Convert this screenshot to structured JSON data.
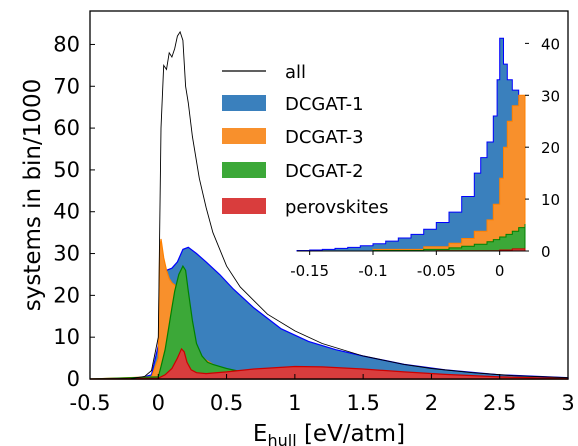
{
  "chart_data": {
    "type": "area",
    "xlabel_main": "E",
    "xlabel_sub": "hull",
    "xlabel_rest": " [eV/atm]",
    "ylabel": "systems in bin/1000",
    "xlim": [
      -0.5,
      3
    ],
    "ylim": [
      0,
      88
    ],
    "xticks": [
      -0.5,
      0,
      0.5,
      1,
      1.5,
      2,
      2.5,
      3
    ],
    "xtick_labels": [
      "-0.5",
      "0",
      "0.5",
      "1",
      "1.5",
      "2",
      "2.5",
      "3"
    ],
    "yticks": [
      0,
      10,
      20,
      30,
      40,
      50,
      60,
      70,
      80
    ],
    "ytick_labels": [
      "0",
      "10",
      "20",
      "30",
      "40",
      "50",
      "60",
      "70",
      "80"
    ],
    "legend": {
      "placement": "upper-center",
      "entries": [
        {
          "label": "all",
          "kind": "line",
          "color": "#000000"
        },
        {
          "label": "DCGAT-1",
          "kind": "patch",
          "color": "#3a80bd"
        },
        {
          "label": "DCGAT-3",
          "kind": "patch",
          "color": "#f8902c"
        },
        {
          "label": "DCGAT-2",
          "kind": "patch",
          "color": "#3ca838"
        },
        {
          "label": "perovskites",
          "kind": "patch",
          "color": "#d93d3d"
        }
      ]
    },
    "series": [
      {
        "name": "all",
        "style": "line",
        "color": "#000000",
        "x": [
          -0.5,
          -0.2,
          -0.1,
          -0.05,
          0.0,
          0.02,
          0.04,
          0.06,
          0.08,
          0.1,
          0.12,
          0.14,
          0.16,
          0.18,
          0.2,
          0.22,
          0.25,
          0.3,
          0.35,
          0.4,
          0.5,
          0.6,
          0.8,
          1.0,
          1.2,
          1.5,
          1.8,
          2.0,
          2.3,
          2.6,
          3.0
        ],
        "y": [
          0,
          0.1,
          0.6,
          2,
          10,
          60,
          75,
          74,
          78,
          77,
          79,
          82,
          83,
          81,
          70,
          66,
          58,
          48,
          41,
          35,
          27,
          22,
          15.5,
          11.5,
          8.5,
          5.5,
          3.5,
          2.5,
          1.5,
          0.8,
          0.3
        ]
      },
      {
        "name": "DCGAT-1",
        "style": "area",
        "color": "#3a80bd",
        "edge": "#0000ff",
        "x": [
          -0.5,
          -0.15,
          -0.05,
          0.0,
          0.02,
          0.04,
          0.06,
          0.1,
          0.14,
          0.18,
          0.22,
          0.28,
          0.35,
          0.45,
          0.55,
          0.7,
          0.9,
          1.1,
          1.3,
          1.5,
          1.8,
          2.1,
          2.5,
          3.0
        ],
        "y": [
          0,
          0.1,
          1,
          8,
          25,
          27,
          26,
          26.5,
          28,
          31,
          31.5,
          30,
          28,
          25,
          21.5,
          17,
          12,
          9,
          7,
          5.5,
          3.5,
          2.2,
          1,
          0.3
        ]
      },
      {
        "name": "DCGAT-3",
        "style": "area",
        "color": "#f8902c",
        "edge": "#ff8000",
        "x": [
          -0.5,
          -0.05,
          0.0,
          0.01,
          0.02,
          0.04,
          0.06,
          0.08,
          0.1,
          0.12,
          0.15,
          0.18,
          0.22,
          0.26,
          0.3,
          0.35,
          0.4,
          0.5,
          0.6,
          0.8,
          1.0,
          3.0
        ],
        "y": [
          0,
          0.5,
          5,
          31,
          33.5,
          29,
          26,
          24,
          23,
          22.5,
          21,
          18,
          12,
          8,
          6,
          4.5,
          3.5,
          2.2,
          1.4,
          0.7,
          0.3,
          0
        ]
      },
      {
        "name": "DCGAT-2",
        "style": "area",
        "color": "#3ca838",
        "edge": "#008000",
        "x": [
          -0.5,
          0.0,
          0.02,
          0.05,
          0.08,
          0.1,
          0.12,
          0.15,
          0.18,
          0.2,
          0.22,
          0.25,
          0.28,
          0.32,
          0.36,
          0.4,
          0.5,
          0.6,
          0.8,
          1.0,
          1.5,
          3.0
        ],
        "y": [
          0,
          0.5,
          3,
          7,
          13,
          17,
          21,
          25,
          27,
          26,
          21,
          14,
          8.5,
          5.5,
          4,
          3.5,
          2.5,
          1.8,
          1,
          0.5,
          0.2,
          0
        ]
      },
      {
        "name": "perovskites",
        "style": "area",
        "color": "#d93d3d",
        "edge": "#cc0000",
        "x": [
          -0.5,
          0.0,
          0.05,
          0.1,
          0.14,
          0.17,
          0.19,
          0.21,
          0.24,
          0.28,
          0.35,
          0.5,
          0.7,
          1.0,
          1.2,
          1.5,
          1.8,
          2.1,
          2.5,
          3.0
        ],
        "y": [
          0,
          0.2,
          1,
          2.5,
          5,
          7.2,
          6.5,
          4,
          2.2,
          1.5,
          1.3,
          1.7,
          2.4,
          3,
          2.9,
          2.4,
          1.7,
          1.1,
          0.5,
          0.1
        ]
      }
    ],
    "inset": {
      "xlim": [
        -0.16,
        0.02
      ],
      "ylim": [
        0,
        42
      ],
      "xticks": [
        -0.15,
        -0.1,
        -0.05,
        0
      ],
      "xtick_labels": [
        "-0.15",
        "-0.1",
        "-0.05",
        "0"
      ],
      "yticks": [
        0,
        10,
        20,
        30,
        40
      ],
      "ytick_labels": [
        "0",
        "10",
        "20",
        "30",
        "40"
      ],
      "yaxis_side": "right",
      "series": [
        {
          "name": "DCGAT-1",
          "color": "#3a80bd",
          "edge": "#0000ff",
          "x": [
            -0.16,
            -0.15,
            -0.14,
            -0.13,
            -0.12,
            -0.11,
            -0.1,
            -0.09,
            -0.08,
            -0.07,
            -0.06,
            -0.05,
            -0.04,
            -0.03,
            -0.02,
            -0.015,
            -0.01,
            -0.005,
            -0.002,
            0.0,
            0.003,
            0.006,
            0.01,
            0.015,
            0.02
          ],
          "y": [
            0.1,
            0.2,
            0.3,
            0.5,
            0.7,
            1.0,
            1.4,
            1.9,
            2.5,
            3.2,
            4.2,
            5.5,
            7.5,
            10.5,
            15,
            18,
            21,
            26,
            33,
            41,
            36,
            33,
            31,
            29,
            28
          ]
        },
        {
          "name": "DCGAT-3",
          "color": "#f8902c",
          "edge": "#ff8000",
          "x": [
            -0.16,
            -0.1,
            -0.06,
            -0.04,
            -0.03,
            -0.02,
            -0.01,
            -0.005,
            0.0,
            0.003,
            0.006,
            0.01,
            0.015,
            0.02
          ],
          "y": [
            0,
            0.3,
            0.8,
            1.5,
            2.4,
            3.8,
            6,
            9,
            14,
            20,
            25,
            28,
            30,
            30
          ]
        },
        {
          "name": "DCGAT-2",
          "color": "#3ca838",
          "edge": "#008000",
          "x": [
            -0.16,
            -0.1,
            -0.06,
            -0.04,
            -0.03,
            -0.02,
            -0.01,
            -0.005,
            0.0,
            0.005,
            0.01,
            0.015,
            0.02
          ],
          "y": [
            0,
            0.1,
            0.3,
            0.6,
            0.9,
            1.3,
            1.8,
            2.2,
            2.7,
            3.2,
            3.8,
            4.5,
            5.2
          ]
        },
        {
          "name": "perovskites",
          "color": "#d93d3d",
          "edge": "#cc0000",
          "x": [
            -0.16,
            -0.05,
            0.0,
            0.01,
            0.02
          ],
          "y": [
            0,
            0.05,
            0.2,
            0.4,
            0.5
          ]
        }
      ]
    }
  }
}
